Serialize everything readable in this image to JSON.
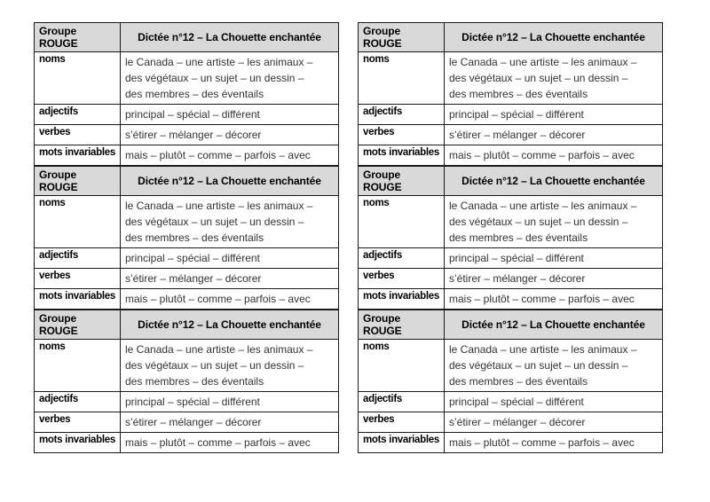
{
  "document": {
    "columns": 2,
    "tables_per_column": 3
  },
  "table": {
    "header": {
      "group": "Groupe ROUGE",
      "title": "Dictée n°12 – La Chouette enchantée"
    },
    "rows": [
      {
        "label": "noms",
        "value": "le Canada – une artiste – les animaux –\ndes végétaux – un sujet – un dessin –\ndes membres – des éventails"
      },
      {
        "label": "adjectifs",
        "value": "principal – spécial – différent"
      },
      {
        "label": "verbes",
        "value": "s’étirer – mélanger – décorer"
      },
      {
        "label": "mots invariables",
        "value": "mais – plutôt – comme – parfois – avec"
      }
    ]
  },
  "colors": {
    "page_bg": "#ffffff",
    "header_bg": "#d9d9d9",
    "border": "#1a1a1a",
    "label_text": "#000000",
    "value_text": "#333333"
  }
}
